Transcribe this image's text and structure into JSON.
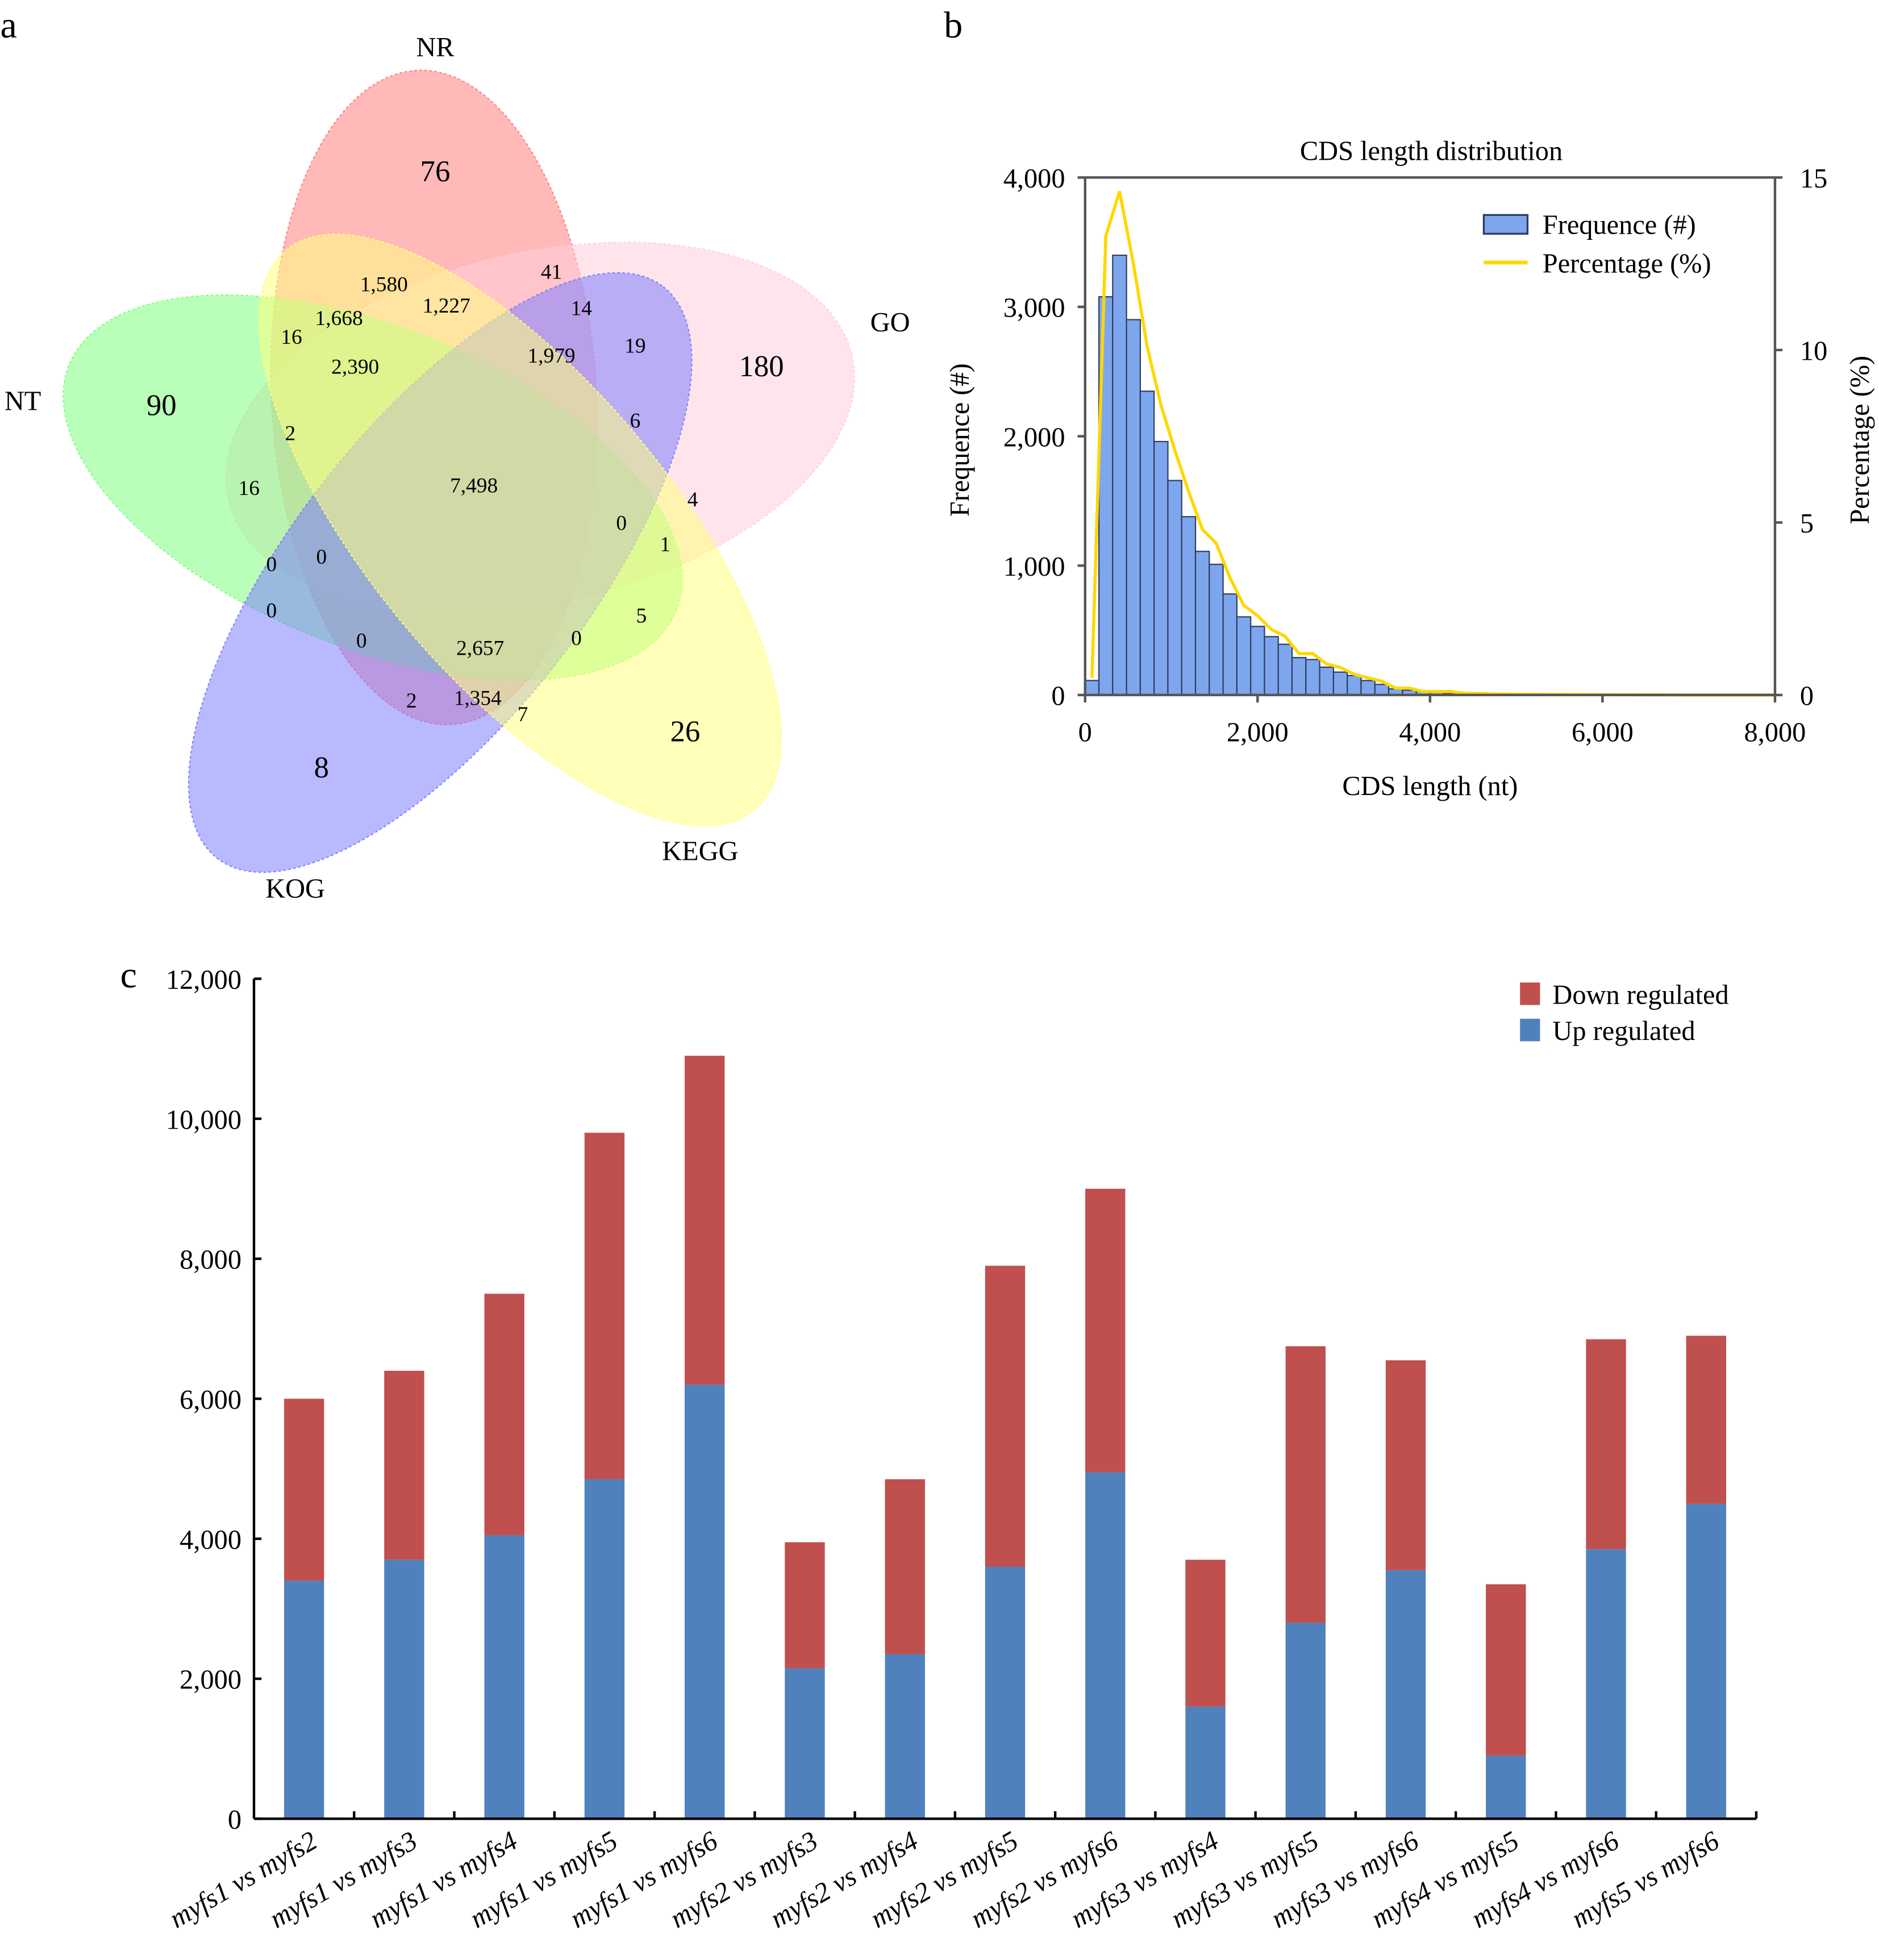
{
  "panel_labels": {
    "a": "a",
    "b": "b",
    "c": "c"
  },
  "chart_data": [
    {
      "type": "venn",
      "sets": [
        {
          "name": "NR",
          "color": "#ff7f7f"
        },
        {
          "name": "GO",
          "color": "#ffd0da"
        },
        {
          "name": "NT",
          "color": "#80ff80"
        },
        {
          "name": "KOG",
          "color": "#7f7fff"
        },
        {
          "name": "KEGG",
          "color": "#ffff80"
        }
      ],
      "region_values": [
        "76",
        "180",
        "90",
        "8",
        "26",
        "1,580",
        "41",
        "1,227",
        "1,668",
        "16",
        "14",
        "2,390",
        "1,979",
        "19",
        "2",
        "6",
        "16",
        "7,498",
        "4",
        "0",
        "1",
        "0",
        "0",
        "0",
        "5",
        "0",
        "2,657",
        "0",
        "2",
        "1,354",
        "7"
      ]
    },
    {
      "type": "bar+line",
      "title": "CDS length distribution",
      "xlabel": "CDS length (nt)",
      "ylabel": "Frequence (#)",
      "y2label": "Percentage (%)",
      "xlim": [
        0,
        8000
      ],
      "ylim": [
        0,
        4000
      ],
      "y2lim": [
        0,
        15
      ],
      "xticks": [
        "0",
        "2,000",
        "4,000",
        "6,000",
        "8,000"
      ],
      "yticks": [
        "0",
        "1,000",
        "2,000",
        "3,000",
        "4,000"
      ],
      "y2ticks": [
        "0",
        "5",
        "10",
        "15"
      ],
      "legend": {
        "position": "top-right",
        "entries": [
          "Frequence (#)",
          "Percentage (%)"
        ]
      },
      "bar_color": "#7ea6ee",
      "line_color": "#ffd700",
      "bin_width": 160,
      "frequency": [
        112,
        3078,
        3399,
        2901,
        2348,
        1959,
        1658,
        1378,
        1110,
        1010,
        781,
        604,
        530,
        451,
        392,
        289,
        274,
        215,
        177,
        150,
        112,
        82,
        47,
        38,
        29,
        21,
        15,
        12,
        9,
        6
      ],
      "percentage": {
        "x": [
          80,
          240,
          400,
          560,
          720,
          880,
          1040,
          1200,
          1360,
          1520,
          1680,
          1840,
          2000,
          2160,
          2320,
          2480,
          2640,
          2800,
          2960,
          3120,
          3280,
          3440,
          3600,
          3760,
          3920,
          4080,
          4240,
          4400,
          4560,
          4720,
          5000,
          6000,
          7000,
          8000
        ],
        "y": [
          0.5,
          13.3,
          14.6,
          12.5,
          10.1,
          8.4,
          7.1,
          5.9,
          4.8,
          4.4,
          3.4,
          2.6,
          2.3,
          1.9,
          1.7,
          1.2,
          1.2,
          0.9,
          0.8,
          0.6,
          0.5,
          0.4,
          0.2,
          0.2,
          0.1,
          0.1,
          0.1,
          0.05,
          0.04,
          0.03,
          0.02,
          0.01,
          0,
          0
        ]
      }
    },
    {
      "type": "bar",
      "stacked": true,
      "ylim": [
        0,
        12000
      ],
      "yticks": [
        "0",
        "2,000",
        "4,000",
        "6,000",
        "8,000",
        "10,000",
        "12,000"
      ],
      "legend": {
        "position": "top-right"
      },
      "categories": [
        "myfs1 vs myfs2",
        "myfs1 vs myfs3",
        "myfs1 vs myfs4",
        "myfs1 vs myfs5",
        "myfs1 vs myfs6",
        "myfs2 vs myfs3",
        "myfs2 vs myfs4",
        "myfs2 vs myfs5",
        "myfs2 vs myfs6",
        "myfs3 vs myfs4",
        "myfs3 vs myfs5",
        "myfs3 vs myfs6",
        "myfs4 vs myfs5",
        "myfs4 vs myfs6",
        "myfs5 vs myfs6"
      ],
      "series": [
        {
          "name": "Up regulated",
          "color": "#4f81bd",
          "values": [
            3400,
            3700,
            4050,
            4850,
            6200,
            2150,
            2350,
            3600,
            4950,
            1600,
            2800,
            3550,
            900,
            3850,
            4500
          ]
        },
        {
          "name": "Down regulated",
          "color": "#c0504d",
          "values": [
            2600,
            2700,
            3450,
            4950,
            4700,
            1800,
            2500,
            4300,
            4050,
            2100,
            3950,
            3000,
            2450,
            3000,
            2400
          ]
        }
      ]
    }
  ]
}
